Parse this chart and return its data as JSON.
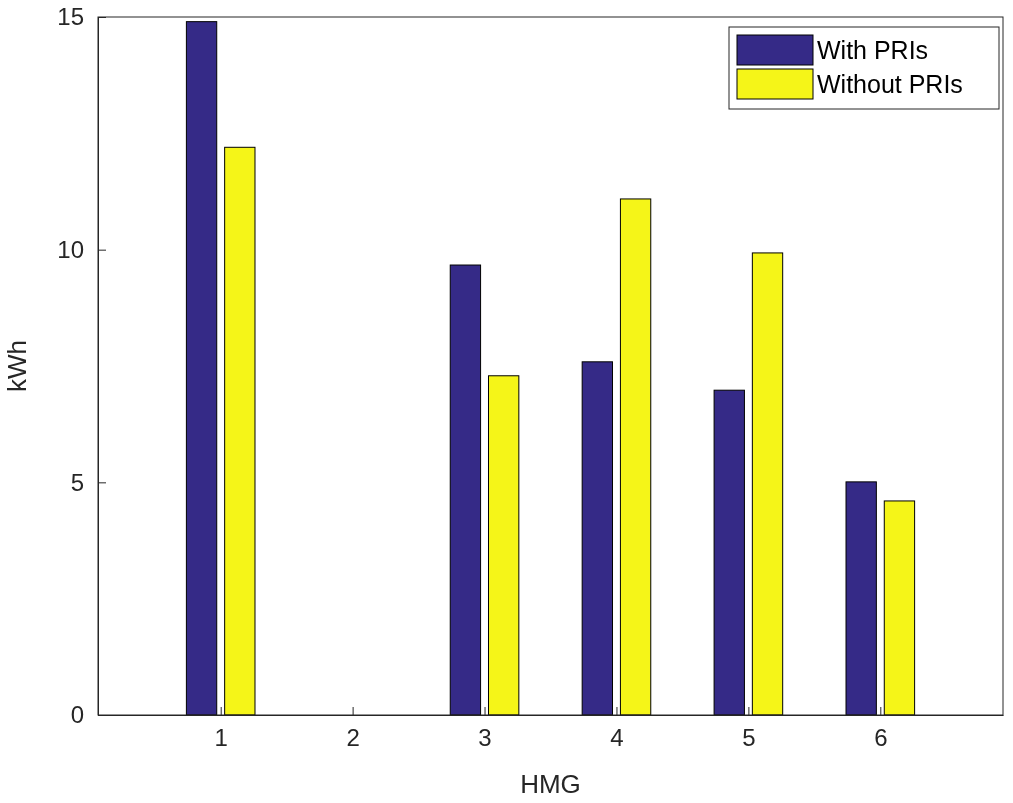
{
  "chart_data": {
    "type": "bar",
    "xlabel": "HMG",
    "ylabel": "kWh",
    "categories": [
      "1",
      "2",
      "3",
      "4",
      "5",
      "6"
    ],
    "series": [
      {
        "name": "With PRIs",
        "color": "#352a87",
        "values": [
          14.9,
          0,
          9.67,
          7.59,
          6.98,
          5.01
        ]
      },
      {
        "name": "Without PRIs",
        "color": "#f5f518",
        "values": [
          12.2,
          0,
          7.29,
          11.09,
          9.93,
          4.6
        ]
      }
    ],
    "ylim": [
      0,
      15
    ],
    "yticks": [
      0,
      5,
      10,
      15
    ],
    "legend": "top right"
  }
}
